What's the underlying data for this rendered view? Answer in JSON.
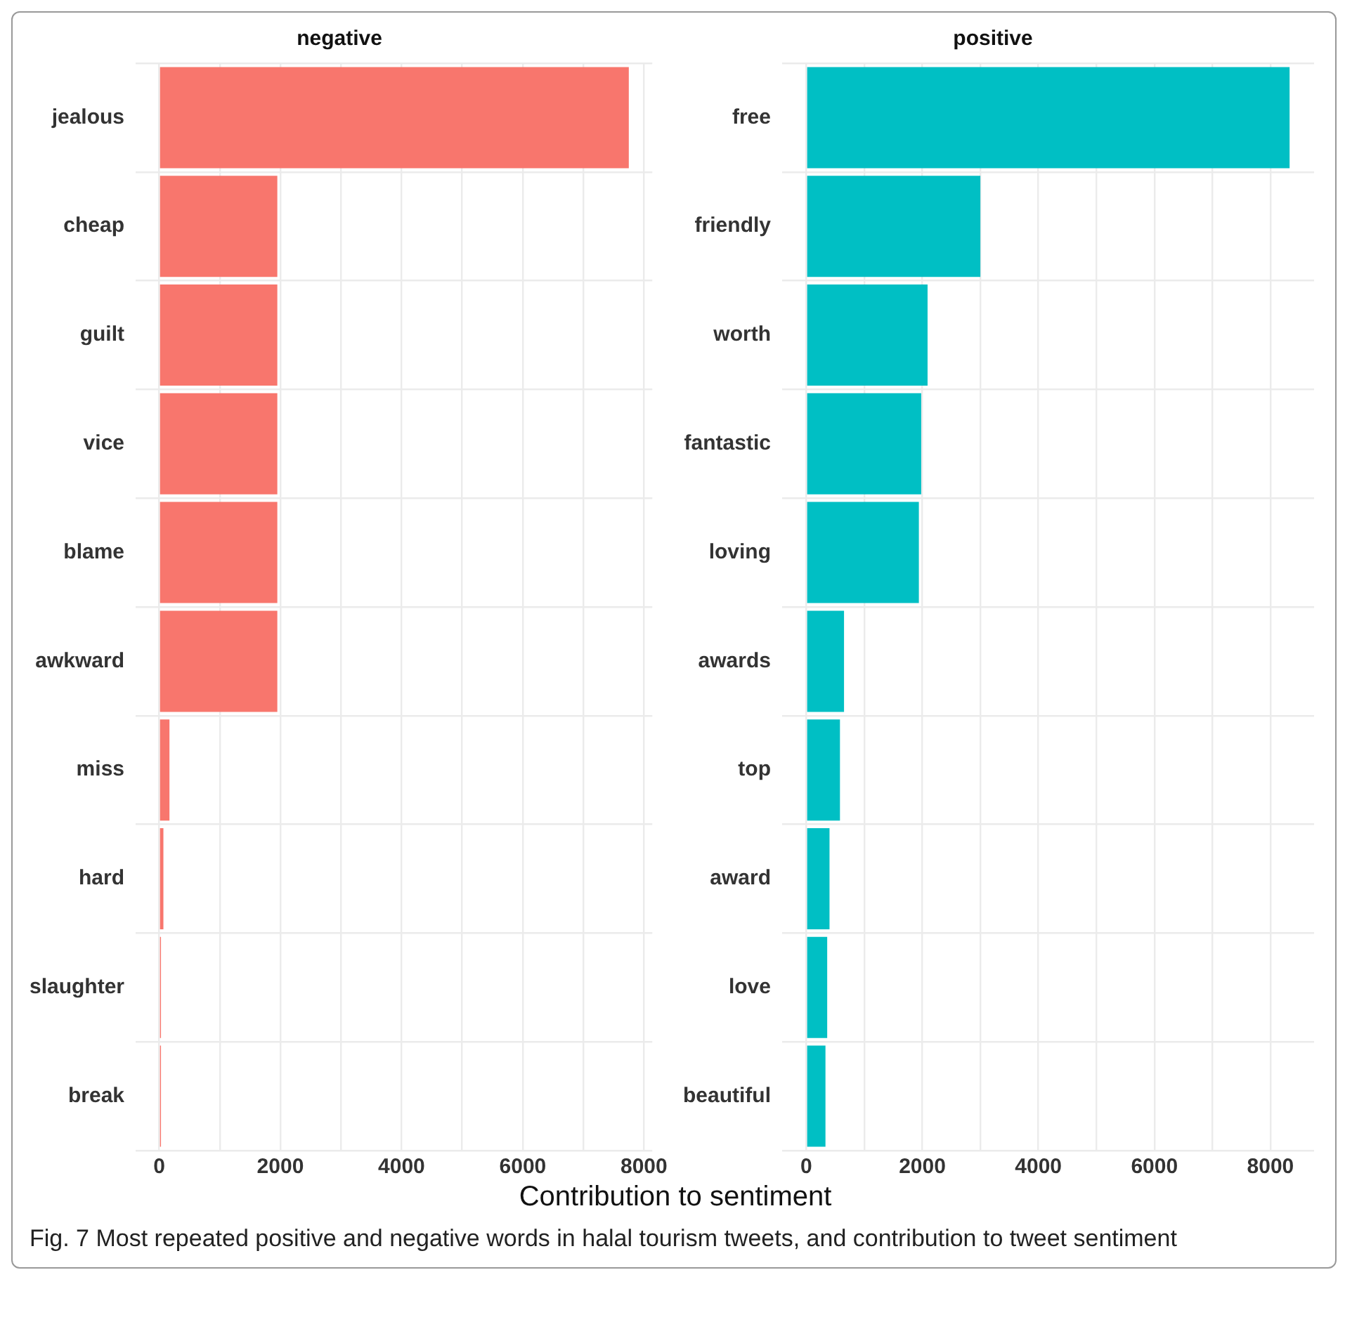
{
  "chart_data": [
    {
      "type": "bar",
      "orientation": "horizontal",
      "title": "negative",
      "xlabel": "Contribution to sentiment",
      "categories": [
        "jealous",
        "cheap",
        "guilt",
        "vice",
        "blame",
        "awkward",
        "miss",
        "hard",
        "slaughter",
        "break"
      ],
      "values": [
        7750,
        1950,
        1950,
        1950,
        1950,
        1950,
        170,
        70,
        30,
        30
      ],
      "color": "#f8766d",
      "xlim": [
        -388,
        8138
      ],
      "xticks": [
        0,
        {
          "value": 1000,
          "label": null
        },
        2000,
        {
          "value": 3000,
          "label": null
        },
        4000,
        {
          "value": 5000,
          "label": null
        },
        6000,
        {
          "value": 7000,
          "label": null
        },
        8000
      ],
      "grid": true,
      "annotations": [
        "Fig. 7  Most repeated positive and negative words in halal tourism tweets, and contribution to tweet sentiment"
      ]
    },
    {
      "type": "bar",
      "orientation": "horizontal",
      "title": "positive",
      "categories": [
        "free",
        "friendly",
        "worth",
        "fantastic",
        "loving",
        "awards",
        "top",
        "award",
        "love",
        "beautiful"
      ],
      "values": [
        8330,
        3000,
        2090,
        1980,
        1940,
        650,
        580,
        400,
        360,
        330
      ],
      "color": "#00bfc4",
      "xlim": [
        -417,
        8752
      ],
      "xticks": [
        0,
        {
          "value": 1000,
          "label": null
        },
        2000,
        {
          "value": 3000,
          "label": null
        },
        4000,
        {
          "value": 5000,
          "label": null
        },
        6000,
        {
          "value": 7000,
          "label": null
        },
        8000
      ],
      "grid": true
    }
  ]
}
